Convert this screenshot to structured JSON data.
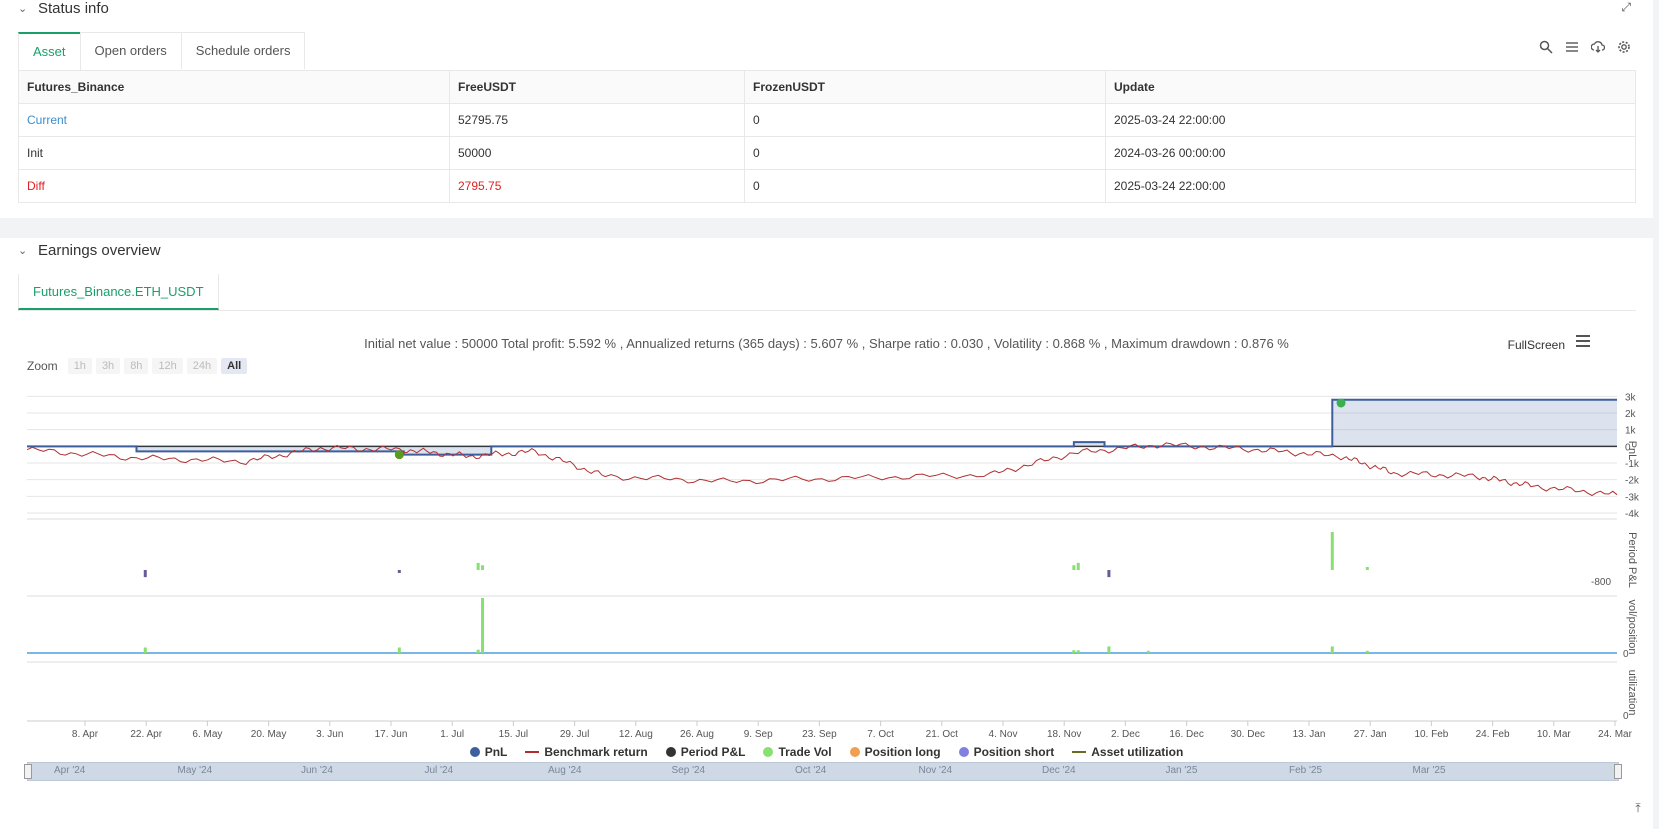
{
  "status": {
    "title": "Status info",
    "tabs": [
      {
        "label": "Asset"
      },
      {
        "label": "Open orders"
      },
      {
        "label": "Schedule orders"
      }
    ],
    "table": {
      "headers": [
        "Futures_Binance",
        "FreeUSDT",
        "FrozenUSDT",
        "Update"
      ],
      "rows": [
        {
          "label": "Current",
          "free": "52795.75",
          "frozen": "0",
          "update": "2025-03-24 22:00:00"
        },
        {
          "label": "Init",
          "free": "50000",
          "frozen": "0",
          "update": "2024-03-26 00:00:00"
        },
        {
          "label": "Diff",
          "free": "2795.75",
          "frozen": "0",
          "update": "2025-03-24 22:00:00"
        }
      ]
    }
  },
  "earnings": {
    "title": "Earnings overview",
    "tab": "Futures_Binance.ETH_USDT",
    "stats": "Initial net value : 50000 Total profit: 5.592 % , Annualized returns (365 days) : 5.607 % , Sharpe ratio : 0.030 , Volatility : 0.868 % , Maximum drawdown : 0.876 %",
    "fullscreen": "FullScreen",
    "zoom_label": "Zoom",
    "zoom_buttons": [
      "1h",
      "3h",
      "8h",
      "12h",
      "24h",
      "All"
    ],
    "legend": [
      {
        "label": "PnL",
        "color": "#3d5f9e"
      },
      {
        "label": "Benchmark return",
        "color": "#b03030"
      },
      {
        "label": "Period P&L",
        "color": "#333333"
      },
      {
        "label": "Trade Vol",
        "color": "#88e070"
      },
      {
        "label": "Position long",
        "color": "#f0a050"
      },
      {
        "label": "Position short",
        "color": "#8080e0"
      },
      {
        "label": "Asset utilization",
        "color": "#6b6b20"
      }
    ],
    "navigator": [
      "Apr '24",
      "May '24",
      "Jun '24",
      "Jul '24",
      "Aug '24",
      "Sep '24",
      "Oct '24",
      "Nov '24",
      "Dec '24",
      "Jan '25",
      "Feb '25",
      "Mar '25"
    ]
  },
  "chart_data": {
    "type": "line",
    "x_ticks": [
      "8. Apr",
      "22. Apr",
      "6. May",
      "20. May",
      "3. Jun",
      "17. Jun",
      "1. Jul",
      "15. Jul",
      "29. Jul",
      "12. Aug",
      "26. Aug",
      "9. Sep",
      "23. Sep",
      "7. Oct",
      "21. Oct",
      "4. Nov",
      "18. Nov",
      "2. Dec",
      "16. Dec",
      "30. Dec",
      "13. Jan",
      "27. Jan",
      "10. Feb",
      "24. Feb",
      "10. Mar",
      "24. Mar"
    ],
    "pnl_axis": {
      "label": "PnL",
      "ticks": [
        "3k",
        "2k",
        "1k",
        "0",
        "-1k",
        "-2k",
        "-3k",
        "-4k"
      ],
      "ylim": [
        -4000,
        3500
      ]
    },
    "period_axis": {
      "label": "Period P&L",
      "ticks": [
        "-800"
      ]
    },
    "vol_axis": {
      "label": "vol/position",
      "ticks": [
        "0"
      ]
    },
    "util_axis": {
      "label": "utilization",
      "ticks": [
        "0"
      ]
    },
    "series": [
      {
        "name": "PnL",
        "x": [
          "2024-03-26",
          "2024-04-20",
          "2024-06-20",
          "2024-07-10",
          "2024-11-20",
          "2024-11-27",
          "2025-01-18",
          "2025-03-24"
        ],
        "values": [
          0,
          -300,
          -500,
          0,
          250,
          0,
          2795,
          2795
        ]
      },
      {
        "name": "Benchmark return",
        "x": [
          "2024-03-26",
          "2024-04-20",
          "2024-05-15",
          "2024-06-01",
          "2024-06-20",
          "2024-07-05",
          "2024-07-20",
          "2024-08-05",
          "2024-09-01",
          "2024-10-01",
          "2024-11-01",
          "2024-11-20",
          "2024-12-10",
          "2025-01-01",
          "2025-01-20",
          "2025-02-01",
          "2025-02-20",
          "2025-03-05",
          "2025-03-24"
        ],
        "values": [
          -200,
          -700,
          -900,
          -100,
          -200,
          -600,
          -300,
          -1800,
          -2100,
          -1900,
          -1700,
          -400,
          100,
          -200,
          -600,
          -1600,
          -1800,
          -2400,
          -2900
        ]
      }
    ],
    "period_pnl": [
      {
        "x": "2024-04-22",
        "value": -300,
        "color": "#6a5a9a"
      },
      {
        "x": "2024-06-19",
        "value": -80,
        "color": "#6a5a9a"
      },
      {
        "x": "2024-07-07",
        "value": 300,
        "color": "#88e070"
      },
      {
        "x": "2024-07-08",
        "value": 200,
        "color": "#88e070"
      },
      {
        "x": "2024-11-20",
        "value": 200,
        "color": "#88e070"
      },
      {
        "x": "2024-11-21",
        "value": 300,
        "color": "#88e070"
      },
      {
        "x": "2024-11-28",
        "value": -300,
        "color": "#6a5a9a"
      },
      {
        "x": "2025-01-18",
        "value": 1600,
        "color": "#88e070"
      },
      {
        "x": "2025-01-26",
        "value": 100,
        "color": "#88e070"
      }
    ],
    "trade_vol": [
      {
        "x": "2024-04-22",
        "value": 10
      },
      {
        "x": "2024-06-19",
        "value": 10
      },
      {
        "x": "2024-07-07",
        "value": 6
      },
      {
        "x": "2024-07-08",
        "value": 100
      },
      {
        "x": "2024-11-20",
        "value": 5
      },
      {
        "x": "2024-11-21",
        "value": 5
      },
      {
        "x": "2024-11-28",
        "value": 12
      },
      {
        "x": "2024-12-07",
        "value": 4
      },
      {
        "x": "2025-01-18",
        "value": 12
      },
      {
        "x": "2025-01-26",
        "value": 4
      }
    ],
    "markers": [
      {
        "x": "2024-06-19",
        "value": -500,
        "color": "#5a9a20"
      },
      {
        "x": "2025-01-20",
        "value": 2600,
        "color": "#3ab050"
      }
    ]
  }
}
